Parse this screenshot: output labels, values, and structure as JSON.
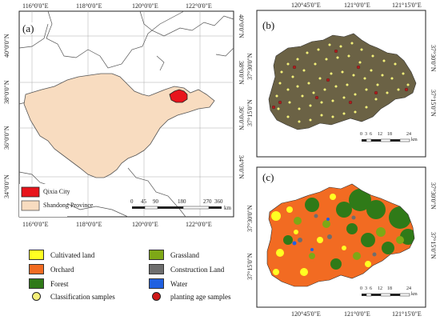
{
  "panels": {
    "a": {
      "label": "(a)"
    },
    "b": {
      "label": "(b)"
    },
    "c": {
      "label": "(c)"
    }
  },
  "panel_a": {
    "top_lon": [
      "116°0'0\"E",
      "118°0'0\"E",
      "120°0'0\"E",
      "122°0'0\"E"
    ],
    "bottom_lon": [
      "116°0'0\"E",
      "118°0'0\"E",
      "120°0'0\"E",
      "122°0'0\"E"
    ],
    "left_lat": [
      "40°0'0\"N",
      "38°0'0\"N",
      "36°0'0\"N",
      "34°0'0\"N"
    ],
    "right_lat": [
      "40°0'0\"N",
      "38°0'0\"N",
      "36°0'0\"N",
      "34°0'0\"N"
    ],
    "legend": {
      "qixia": "Qixia City",
      "shandong": "Shandong Province"
    },
    "scalebar": {
      "labels": [
        "0",
        "45",
        "90",
        "180",
        "270",
        "360"
      ],
      "unit": "km"
    },
    "colors": {
      "province": "#f8dcc0",
      "qixia": "#e8141c"
    }
  },
  "panel_b": {
    "top_lon": [
      "120°45'0\"E",
      "121°0'0\"E",
      "121°15'0\"E"
    ],
    "left_lat": [
      "37°30'0\"N",
      "37°15'0\"N"
    ],
    "right_lat": [
      "37°30'0\"N",
      "37°15'0\"N"
    ],
    "scalebar": {
      "labels": [
        "0",
        "3",
        "6",
        "12",
        "18",
        "24"
      ],
      "unit": "km"
    },
    "colors": {
      "imagery": "#6b6245",
      "sample": "#f5f07a",
      "age_sample": "#b01c1c"
    }
  },
  "panel_c": {
    "bottom_lon": [
      "120°45'0\"E",
      "121°0'0\"E",
      "121°15'0\"E"
    ],
    "left_lat": [
      "37°30'0\"N",
      "37°15'0\"N"
    ],
    "right_lat": [
      "37°30'0\"N",
      "37°15'0\"N"
    ],
    "scalebar": {
      "labels": [
        "0",
        "3",
        "6",
        "12",
        "18",
        "24"
      ],
      "unit": "km"
    }
  },
  "legend": {
    "items": [
      {
        "label": "Cultivated land",
        "color": "#ffff22",
        "kind": "swatch"
      },
      {
        "label": "Grassland",
        "color": "#7ea816",
        "kind": "swatch"
      },
      {
        "label": "Orchard",
        "color": "#f26b22",
        "kind": "swatch"
      },
      {
        "label": "Construction Land",
        "color": "#6e6e6e",
        "kind": "swatch"
      },
      {
        "label": "Forest",
        "color": "#2f7a18",
        "kind": "swatch"
      },
      {
        "label": "Water",
        "color": "#2060e0",
        "kind": "swatch"
      },
      {
        "label": "Classification samples",
        "color": "#f5f07a",
        "kind": "dot"
      },
      {
        "label": "planting age samples",
        "color": "#d01818",
        "kind": "dot"
      }
    ]
  }
}
